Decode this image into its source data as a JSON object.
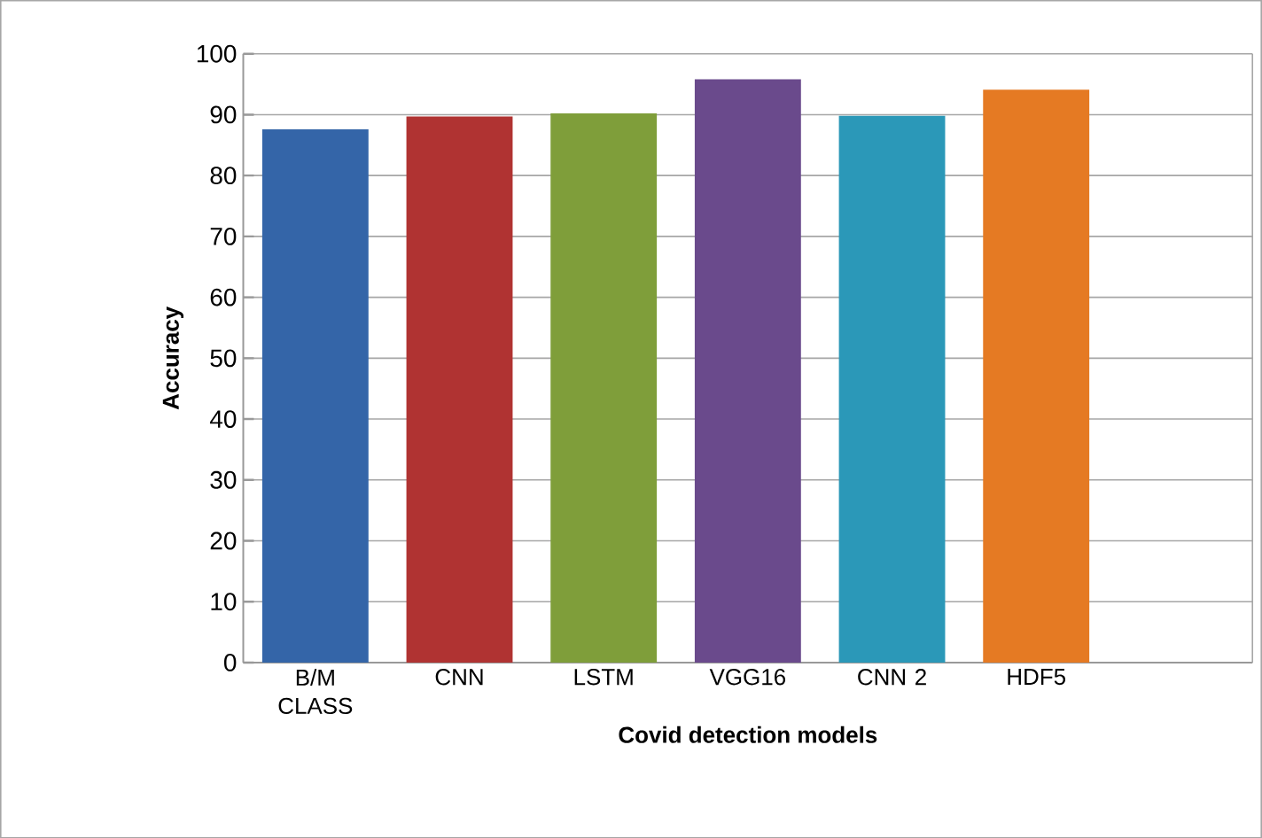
{
  "chart_data": {
    "type": "bar",
    "xlabel": "Covid detection models",
    "ylabel": "Accuracy",
    "categories": [
      "B/M CLASS",
      "CNN",
      "LSTM",
      "VGG16",
      "CNN 2",
      "HDF5",
      null
    ],
    "values": [
      87.6,
      89.7,
      90.2,
      95.8,
      89.8,
      94.1,
      null
    ],
    "colors": [
      "#3465a8",
      "#b03332",
      "#7f9e3a",
      "#6a4a8c",
      "#2b98b8",
      "#e57a23",
      "#888888"
    ],
    "ylim": [
      0,
      100
    ],
    "yticks": [
      0,
      10,
      20,
      30,
      40,
      50,
      60,
      70,
      80,
      90,
      100
    ],
    "grid": "y"
  }
}
